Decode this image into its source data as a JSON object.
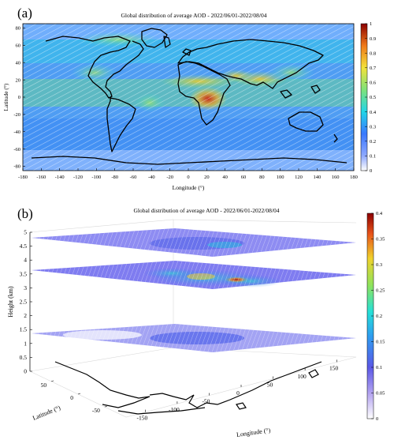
{
  "chart_data": [
    {
      "type": "heatmap",
      "panel_label": "(a)",
      "title": "Global distribution of average AOD - 2022/06/01-2022/08/04",
      "xlabel": "Longitude (°)",
      "ylabel": "Latitude (°)",
      "xlim": [
        -180,
        180
      ],
      "ylim": [
        -85,
        85
      ],
      "x_ticks": [
        -180,
        -160,
        -140,
        -120,
        -100,
        -80,
        -60,
        -40,
        -20,
        0,
        20,
        40,
        60,
        80,
        100,
        120,
        140,
        160,
        180
      ],
      "y_ticks": [
        -80,
        -60,
        -40,
        -20,
        0,
        20,
        40,
        60,
        80
      ],
      "colorbar": {
        "min": 0,
        "max": 1,
        "ticks": [
          0,
          0.1,
          0.2,
          0.3,
          0.4,
          0.5,
          0.6,
          0.7,
          0.8,
          0.9,
          1
        ]
      }
    },
    {
      "type": "heatmap",
      "panel_label": "(b)",
      "title": "Global distribution of average AOD - 2022/06/01-2022/08/04",
      "xlabel": "Longitude (°)",
      "ylabel": "Latitude (°)",
      "zlabel": "Height (km)",
      "z_ticks": [
        0,
        0.5,
        1,
        1.5,
        2,
        2.5,
        3,
        3.5,
        4,
        4.5,
        5
      ],
      "lon_ticks": [
        -150,
        -100,
        -50,
        0,
        50,
        100,
        150
      ],
      "lat_ticks": [
        50,
        0,
        -50
      ],
      "layer_heights_km": [
        0.5,
        2.5,
        4.5
      ],
      "colorbar": {
        "min": 0,
        "max": 0.4,
        "ticks": [
          0,
          0.05,
          0.1,
          0.15,
          0.2,
          0.25,
          0.3,
          0.35,
          0.4
        ]
      }
    }
  ]
}
